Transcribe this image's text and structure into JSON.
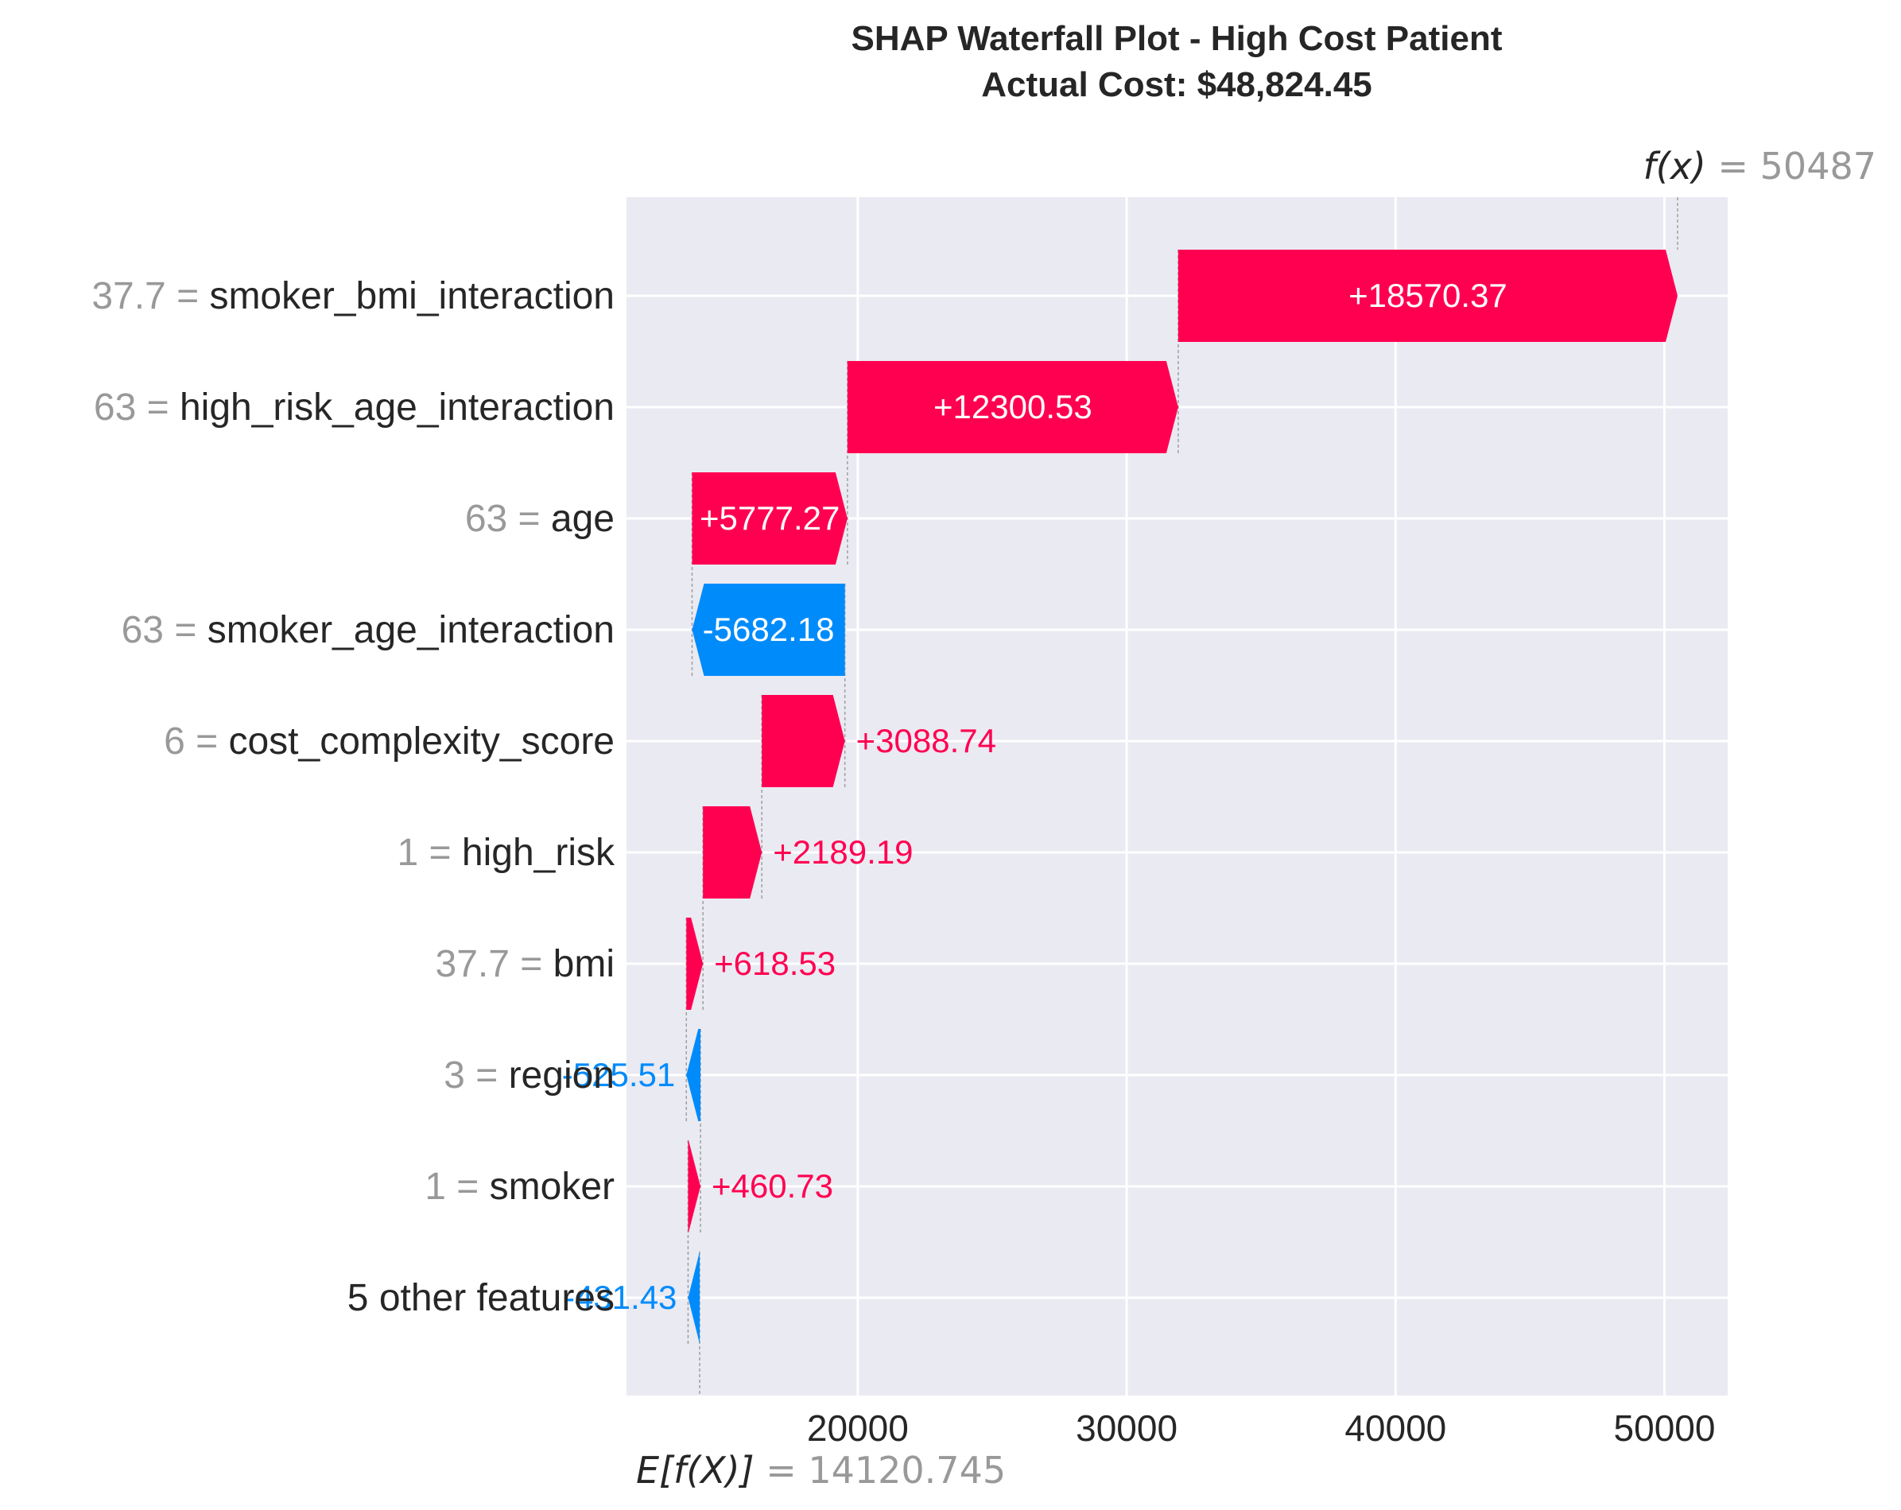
{
  "chart_data": {
    "type": "waterfall",
    "title": "SHAP Waterfall Plot - High Cost Patient",
    "subtitle": "Actual Cost: $48,824.45",
    "base_value_label": "E[f(X)]",
    "base_value_text": "= 14120.745",
    "base_value": 14120.745,
    "final_value_label": "f(x)",
    "final_value_text": "= 50487",
    "final_value": 50487,
    "features": [
      {
        "value": "37.7",
        "name": "smoker_bmi_interaction",
        "shap": 18570.37,
        "label": "+18570.37"
      },
      {
        "value": "63",
        "name": "high_risk_age_interaction",
        "shap": 12300.53,
        "label": "+12300.53"
      },
      {
        "value": "63",
        "name": "age",
        "shap": 5777.27,
        "label": "+5777.27"
      },
      {
        "value": "63",
        "name": "smoker_age_interaction",
        "shap": -5682.18,
        "label": "-5682.18"
      },
      {
        "value": "6",
        "name": "cost_complexity_score",
        "shap": 3088.74,
        "label": "+3088.74"
      },
      {
        "value": "1",
        "name": "high_risk",
        "shap": 2189.19,
        "label": "+2189.19"
      },
      {
        "value": "37.7",
        "name": "bmi",
        "shap": 618.53,
        "label": "+618.53"
      },
      {
        "value": "3",
        "name": "region",
        "shap": -525.51,
        "label": "-525.51"
      },
      {
        "value": "1",
        "name": "smoker",
        "shap": 460.73,
        "label": "+460.73"
      },
      {
        "value": "",
        "name": "5 other features",
        "shap": -431.43,
        "label": "-431.43"
      }
    ],
    "xticks": [
      20000,
      30000,
      40000,
      50000
    ],
    "xlim": [
      11400,
      52350
    ],
    "grid": true
  },
  "colors": {
    "positive": "#ff0051",
    "negative": "#008bfb",
    "background": "#eaeaf2",
    "grid": "#ffffff",
    "value_gray": "#999999",
    "text": "#262626"
  }
}
